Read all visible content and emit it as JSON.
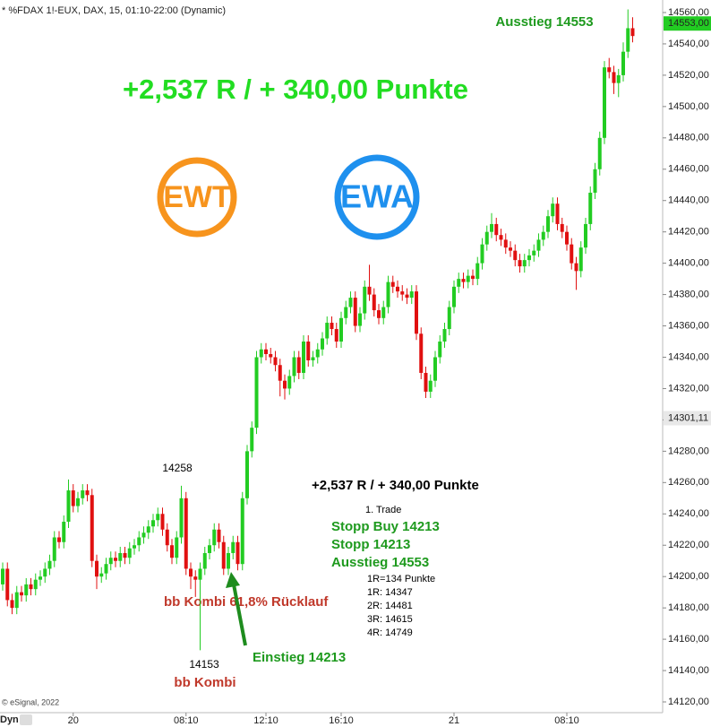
{
  "chart_data": {
    "type": "candlestick",
    "title": "* %FDAX 1!-EUX, DAX, 15, 01:10-22:00 (Dynamic)",
    "up_color": "#22cc22",
    "down_color": "#e01010",
    "open": [
      14195,
      14205,
      14185,
      14180,
      14190,
      14188,
      14195,
      14192,
      14198,
      14200,
      14205,
      14210,
      14225,
      14222,
      14235,
      14255,
      14245,
      14250,
      14255,
      14252,
      14210,
      14200,
      14202,
      14208,
      14212,
      14210,
      14215,
      14212,
      14218,
      14220,
      14225,
      14228,
      14232,
      14236,
      14240,
      14230,
      14220,
      14212,
      14225,
      14250,
      14205,
      14200,
      14198,
      14205,
      14215,
      14220,
      14230,
      14222,
      14205,
      14215,
      14222,
      14208,
      14250,
      14280,
      14295,
      14340,
      14345,
      14342,
      14340,
      14335,
      14325,
      14320,
      14328,
      14340,
      14330,
      14350,
      14338,
      14340,
      14345,
      14352,
      14362,
      14358,
      14350,
      14365,
      14372,
      14378,
      14360,
      14368,
      14385,
      14380,
      14370,
      14365,
      14372,
      14388,
      14385,
      14382,
      14380,
      14378,
      14382,
      14355,
      14330,
      14318,
      14325,
      14340,
      14350,
      14358,
      14372,
      14385,
      14390,
      14388,
      14392,
      14390,
      14400,
      14412,
      14420,
      14425,
      14418,
      14415,
      14410,
      14408,
      14402,
      14398,
      14402,
      14405,
      14408,
      14415,
      14420,
      14430,
      14438,
      14425,
      14420,
      14412,
      14400,
      14395,
      14410,
      14425,
      14445,
      14460,
      14480,
      14525,
      14522,
      14515,
      14520,
      14535,
      14550
    ],
    "high": [
      14209,
      14209,
      14189,
      14194,
      14194,
      14199,
      14199,
      14202,
      14204,
      14209,
      14214,
      14229,
      14229,
      14239,
      14262,
      14259,
      14254,
      14259,
      14259,
      14256,
      14214,
      14206,
      14212,
      14216,
      14216,
      14219,
      14219,
      14222,
      14224,
      14229,
      14232,
      14236,
      14240,
      14244,
      14244,
      14234,
      14224,
      14229,
      14258,
      14254,
      14209,
      14204,
      14209,
      14219,
      14224,
      14234,
      14234,
      14226,
      14219,
      14226,
      14226,
      14254,
      14284,
      14299,
      14344,
      14349,
      14349,
      14346,
      14344,
      14339,
      14329,
      14332,
      14344,
      14344,
      14354,
      14354,
      14344,
      14349,
      14356,
      14366,
      14366,
      14362,
      14369,
      14376,
      14382,
      14382,
      14372,
      14389,
      14399,
      14384,
      14374,
      14376,
      14392,
      14392,
      14389,
      14386,
      14384,
      14386,
      14386,
      14359,
      14334,
      14329,
      14344,
      14354,
      14362,
      14376,
      14389,
      14394,
      14394,
      14396,
      14396,
      14404,
      14416,
      14424,
      14432,
      14429,
      14422,
      14419,
      14414,
      14412,
      14406,
      14406,
      14409,
      14412,
      14419,
      14424,
      14434,
      14442,
      14442,
      14429,
      14424,
      14416,
      14404,
      14414,
      14429,
      14449,
      14464,
      14484,
      14529,
      14531,
      14526,
      14524,
      14541,
      14562,
      14557
    ],
    "low": [
      14191,
      14181,
      14176,
      14176,
      14184,
      14184,
      14188,
      14188,
      14194,
      14196,
      14201,
      14206,
      14218,
      14218,
      14231,
      14241,
      14241,
      14246,
      14248,
      14206,
      14192,
      14196,
      14198,
      14204,
      14206,
      14206,
      14208,
      14208,
      14214,
      14216,
      14221,
      14224,
      14228,
      14232,
      14226,
      14216,
      14208,
      14208,
      14221,
      14201,
      14192,
      14187,
      14153,
      14201,
      14211,
      14216,
      14218,
      14201,
      14201,
      14211,
      14204,
      14204,
      14246,
      14276,
      14291,
      14336,
      14338,
      14336,
      14331,
      14315,
      14313,
      14316,
      14324,
      14326,
      14326,
      14334,
      14334,
      14336,
      14341,
      14348,
      14354,
      14346,
      14346,
      14361,
      14368,
      14356,
      14356,
      14364,
      14376,
      14366,
      14361,
      14361,
      14368,
      14381,
      14378,
      14376,
      14374,
      14374,
      14351,
      14326,
      14314,
      14314,
      14321,
      14336,
      14346,
      14354,
      14368,
      14381,
      14384,
      14384,
      14386,
      14386,
      14396,
      14408,
      14416,
      14414,
      14411,
      14406,
      14404,
      14398,
      14394,
      14394,
      14398,
      14401,
      14404,
      14411,
      14416,
      14426,
      14421,
      14416,
      14408,
      14396,
      14383,
      14391,
      14406,
      14421,
      14441,
      14456,
      14476,
      14518,
      14508,
      14506,
      14516,
      14531,
      14541
    ],
    "close": [
      14205,
      14185,
      14180,
      14190,
      14188,
      14195,
      14192,
      14198,
      14200,
      14205,
      14210,
      14225,
      14222,
      14235,
      14255,
      14245,
      14250,
      14255,
      14252,
      14210,
      14200,
      14202,
      14208,
      14212,
      14210,
      14215,
      14212,
      14218,
      14220,
      14225,
      14228,
      14232,
      14236,
      14240,
      14230,
      14220,
      14212,
      14225,
      14250,
      14205,
      14200,
      14198,
      14205,
      14215,
      14220,
      14230,
      14222,
      14205,
      14215,
      14222,
      14208,
      14250,
      14280,
      14295,
      14340,
      14345,
      14342,
      14340,
      14335,
      14325,
      14320,
      14328,
      14340,
      14330,
      14350,
      14338,
      14340,
      14345,
      14352,
      14362,
      14358,
      14350,
      14365,
      14372,
      14378,
      14360,
      14368,
      14385,
      14380,
      14370,
      14365,
      14372,
      14388,
      14385,
      14382,
      14380,
      14378,
      14382,
      14355,
      14330,
      14318,
      14325,
      14340,
      14350,
      14358,
      14372,
      14385,
      14390,
      14388,
      14392,
      14390,
      14400,
      14412,
      14420,
      14425,
      14418,
      14415,
      14410,
      14408,
      14402,
      14398,
      14402,
      14405,
      14408,
      14415,
      14420,
      14430,
      14438,
      14425,
      14420,
      14412,
      14400,
      14395,
      14410,
      14425,
      14445,
      14460,
      14480,
      14525,
      14522,
      14515,
      14520,
      14535,
      14550,
      14545
    ],
    "ylim": [
      14116,
      14568
    ],
    "yticks": [
      {
        "value": 14120,
        "label": "14120,00"
      },
      {
        "value": 14140,
        "label": "14140,00"
      },
      {
        "value": 14160,
        "label": "14160,00"
      },
      {
        "value": 14180,
        "label": "14180,00"
      },
      {
        "value": 14200,
        "label": "14200,00"
      },
      {
        "value": 14220,
        "label": "14220,00"
      },
      {
        "value": 14240,
        "label": "14240,00"
      },
      {
        "value": 14260,
        "label": "14260,00"
      },
      {
        "value": 14280,
        "label": "14280,00"
      },
      {
        "value": 14300,
        "label": "14300,00"
      },
      {
        "value": 14320,
        "label": "14320,00"
      },
      {
        "value": 14340,
        "label": "14340,00"
      },
      {
        "value": 14360,
        "label": "14360,00"
      },
      {
        "value": 14380,
        "label": "14380,00"
      },
      {
        "value": 14400,
        "label": "14400,00"
      },
      {
        "value": 14420,
        "label": "14420,00"
      },
      {
        "value": 14440,
        "label": "14440,00"
      },
      {
        "value": 14460,
        "label": "14460,00"
      },
      {
        "value": 14480,
        "label": "14480,00"
      },
      {
        "value": 14500,
        "label": "14500,00"
      },
      {
        "value": 14520,
        "label": "14520,00"
      },
      {
        "value": 14540,
        "label": "14540,00"
      },
      {
        "value": 14560,
        "label": "14560,00"
      }
    ],
    "xticks": [
      {
        "value": 15,
        "label": "20"
      },
      {
        "value": 39,
        "label": "08:10"
      },
      {
        "value": 56,
        "label": "12:10"
      },
      {
        "value": 72,
        "label": "16:10"
      },
      {
        "value": 96,
        "label": "21"
      },
      {
        "value": 120,
        "label": "08:10"
      }
    ],
    "price_tags": [
      {
        "value": 14553,
        "label": "14553,00"
      },
      {
        "value": 14301.11,
        "label": "14301,11"
      }
    ],
    "x_mode": "Dyn",
    "copyright": "© eSignal, 2022",
    "headline": "+2,537 R / + 340,00 Punkte",
    "exit_label": "Ausstieg 14553",
    "logos": [
      "EWT",
      "EWA"
    ],
    "high_label": "14258",
    "low_label": "14153",
    "signal_label": "bb Kombi 61,8% Rücklauf",
    "signal2_label": "bb Kombi",
    "entry_label": "Einstieg 14213",
    "trade_box": {
      "headline": "+2,537 R / + 340,00 Punkte",
      "trade": "1. Trade",
      "orders": [
        "Stopp Buy 14213",
        "Stopp 14213",
        "Ausstieg 14553"
      ],
      "targets": [
        "1R=134 Punkte",
        "1R: 14347",
        "2R: 14481",
        "3R: 14615",
        "4R: 14749"
      ]
    }
  }
}
